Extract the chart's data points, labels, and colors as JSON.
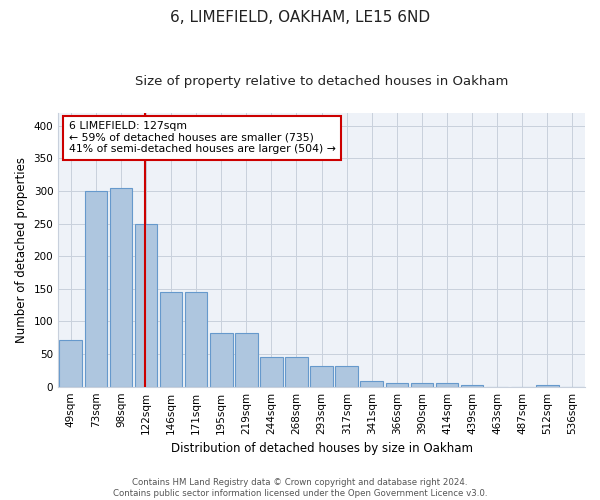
{
  "title": "6, LIMEFIELD, OAKHAM, LE15 6ND",
  "subtitle": "Size of property relative to detached houses in Oakham",
  "xlabel": "Distribution of detached houses by size in Oakham",
  "ylabel": "Number of detached properties",
  "categories": [
    "49sqm",
    "73sqm",
    "98sqm",
    "122sqm",
    "146sqm",
    "171sqm",
    "195sqm",
    "219sqm",
    "244sqm",
    "268sqm",
    "293sqm",
    "317sqm",
    "341sqm",
    "366sqm",
    "390sqm",
    "414sqm",
    "439sqm",
    "463sqm",
    "487sqm",
    "512sqm",
    "536sqm"
  ],
  "values": [
    72,
    300,
    304,
    250,
    145,
    145,
    83,
    83,
    45,
    45,
    32,
    32,
    8,
    6,
    6,
    6,
    2,
    0,
    0,
    3,
    0
  ],
  "bar_color": "#aec6df",
  "bar_edge_color": "#6699cc",
  "marker_label": "6 LIMEFIELD: 127sqm",
  "annotation_line1": "← 59% of detached houses are smaller (735)",
  "annotation_line2": "41% of semi-detached houses are larger (504) →",
  "ylim": [
    0,
    420
  ],
  "yticks": [
    0,
    50,
    100,
    150,
    200,
    250,
    300,
    350,
    400
  ],
  "grid_color": "#c8d0dc",
  "background_color": "#eef2f8",
  "annotation_box_color": "#ffffff",
  "annotation_box_edge": "#cc0000",
  "marker_line_color": "#cc0000",
  "title_fontsize": 11,
  "subtitle_fontsize": 9.5,
  "axis_label_fontsize": 8.5,
  "tick_fontsize": 7.5,
  "footer_text": "Contains HM Land Registry data © Crown copyright and database right 2024.\nContains public sector information licensed under the Open Government Licence v3.0."
}
